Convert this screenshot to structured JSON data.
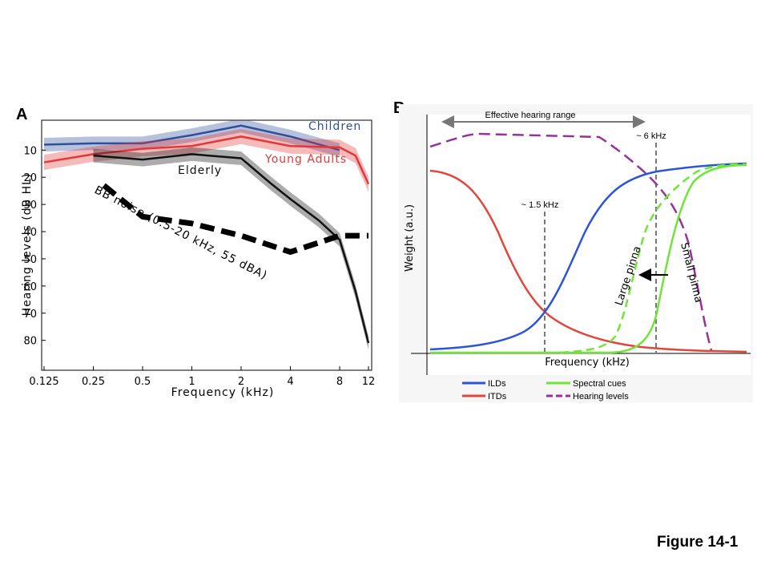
{
  "figure_label": "Figure 14-1",
  "colors": {
    "children": "#2e4f9a",
    "young_adults": "#e3383a",
    "elderly": "#111111",
    "bb_noise": "#000000",
    "ilds": "#2b55d6",
    "itds": "#e2453a",
    "spectral": "#6ee637",
    "hearing": "#96329b",
    "guide": "#777777"
  },
  "chart_data": [
    {
      "panel": "A",
      "type": "line",
      "xlabel": "Frequency (kHz)",
      "ylabel": "Hearing levels (dB HL)",
      "x_ticks": [
        "0.125",
        "0.25",
        "0.5",
        "1",
        "2",
        "4",
        "8",
        "12"
      ],
      "y_ticks": [
        "10",
        "20",
        "30",
        "40",
        "50",
        "60",
        "70",
        "80"
      ],
      "xlim": [
        0.125,
        12
      ],
      "ylim": [
        -1,
        91
      ],
      "x_scale": "log",
      "y_inverted": true,
      "series": [
        {
          "name": "Children",
          "x": [
            0.125,
            0.25,
            0.5,
            1,
            2,
            4,
            8
          ],
          "y": [
            8,
            7.5,
            7.5,
            4.5,
            1,
            5,
            10
          ],
          "band": 2.5
        },
        {
          "name": "Young Adults",
          "x": [
            0.125,
            0.25,
            0.5,
            1,
            2,
            4,
            8,
            10,
            12
          ],
          "y": [
            14.5,
            11.5,
            9.5,
            8.5,
            5,
            8.5,
            9,
            12,
            22.5
          ],
          "band": 2.8
        },
        {
          "name": "Elderly",
          "x": [
            0.25,
            0.5,
            1,
            2,
            3,
            4,
            6,
            8,
            10,
            12
          ],
          "y": [
            12,
            13.5,
            11.5,
            13,
            22,
            28,
            36,
            43,
            62,
            81
          ],
          "band": 2.5
        },
        {
          "name": "BB noise (0.5-20 kHz, 55 dBA)",
          "x": [
            0.29,
            0.5,
            1,
            2,
            4,
            8,
            12
          ],
          "y": [
            23,
            34.5,
            37,
            41.5,
            47.5,
            41.5,
            41.5
          ],
          "style": "dashed"
        }
      ]
    },
    {
      "panel": "B",
      "type": "line",
      "xlabel": "Frequency (kHz)",
      "ylabel": "Weight (a.u.)",
      "annotations": {
        "range": "Effective hearing range",
        "mark1": "~ 1.5 kHz",
        "mark2": "~ 6 kHz",
        "large": "Large pinna",
        "small": "Small pinna"
      },
      "legend": [
        "ILDs",
        "ITDs",
        "Spectral cues",
        "Hearing levels"
      ]
    }
  ]
}
